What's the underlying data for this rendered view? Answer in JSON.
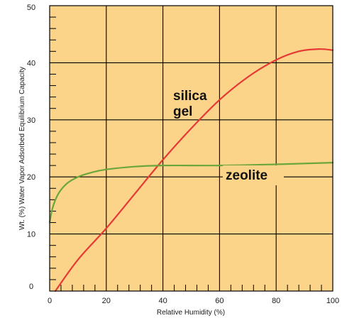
{
  "chart_data": {
    "type": "line",
    "title": "",
    "xlabel": "Relative Humidity (%)",
    "ylabel": "Wt. (%) Water Vapor Adsorbed Equilibrium Capacity",
    "xlim": [
      0,
      100
    ],
    "ylim": [
      0,
      50
    ],
    "x_ticks": [
      0,
      20,
      40,
      60,
      80,
      100
    ],
    "y_ticks": [
      0,
      10,
      20,
      30,
      40,
      50
    ],
    "x_tick_labels": [
      "0",
      "20",
      "40",
      "60",
      "80",
      "100"
    ],
    "y_tick_labels": [
      "0",
      "10",
      "20",
      "30",
      "40",
      "50"
    ],
    "grid": true,
    "background_color": "#fbd48a",
    "series": [
      {
        "name": "silica gel",
        "label_lines": [
          "silica",
          "gel"
        ],
        "color": "#e53935",
        "x": [
          2,
          10,
          20,
          30,
          40,
          50,
          60,
          70,
          80,
          88,
          95,
          100
        ],
        "y": [
          0,
          5.5,
          11,
          17,
          23,
          28.5,
          33.5,
          37.5,
          40.5,
          42,
          42.4,
          42.2
        ]
      },
      {
        "name": "zeolite",
        "label_lines": [
          "zeolite"
        ],
        "color": "#6aa63c",
        "x": [
          0,
          1,
          3,
          6,
          10,
          15,
          20,
          30,
          40,
          60,
          80,
          100
        ],
        "y": [
          12,
          14.5,
          17,
          18.8,
          20,
          20.8,
          21.3,
          21.8,
          22,
          22,
          22.2,
          22.5
        ]
      }
    ]
  }
}
